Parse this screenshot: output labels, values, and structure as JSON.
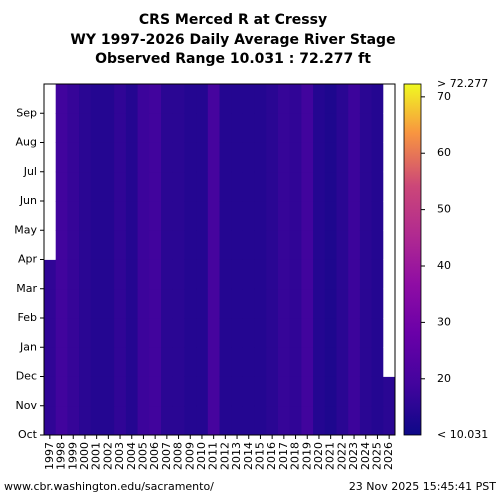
{
  "chart_data": {
    "type": "heatmap",
    "title_lines": [
      "CRS Merced R at Cressy",
      "WY 1997-2026 Daily Average River Stage",
      "Observed Range 10.031 : 72.277 ft"
    ],
    "x_categories": [
      "1997",
      "1998",
      "1999",
      "2000",
      "2001",
      "2002",
      "2003",
      "2004",
      "2005",
      "2006",
      "2007",
      "2008",
      "2009",
      "2010",
      "2011",
      "2012",
      "2013",
      "2014",
      "2015",
      "2016",
      "2017",
      "2018",
      "2019",
      "2020",
      "2021",
      "2022",
      "2023",
      "2024",
      "2025",
      "2026"
    ],
    "y_categories": [
      "Oct",
      "Nov",
      "Dec",
      "Jan",
      "Feb",
      "Mar",
      "Apr",
      "May",
      "Jun",
      "Jul",
      "Aug",
      "Sep"
    ],
    "colorbar": {
      "min": 10.031,
      "max": 72.277,
      "top_label": "> 72.277",
      "bottom_label": "< 10.031",
      "ticks": [
        20,
        30,
        40,
        50,
        60,
        70
      ],
      "colormap": "plasma"
    },
    "year_stage_levels": [
      16,
      19,
      17,
      15,
      14,
      14,
      16,
      14,
      18,
      19,
      15,
      15,
      14,
      14,
      20,
      14,
      14,
      14,
      14,
      15,
      17,
      16,
      19,
      14,
      13,
      15,
      18,
      15,
      14,
      15
    ],
    "gaps": [
      {
        "year": "1997",
        "from_month": "Apr",
        "to_month": "Sep"
      },
      {
        "year": "2026",
        "from_month": "Dec",
        "to_month": "Sep"
      }
    ]
  },
  "footer": {
    "url": "www.cbr.washington.edu/sacramento/",
    "timestamp": "23 Nov 2025 15:45:41 PST"
  }
}
